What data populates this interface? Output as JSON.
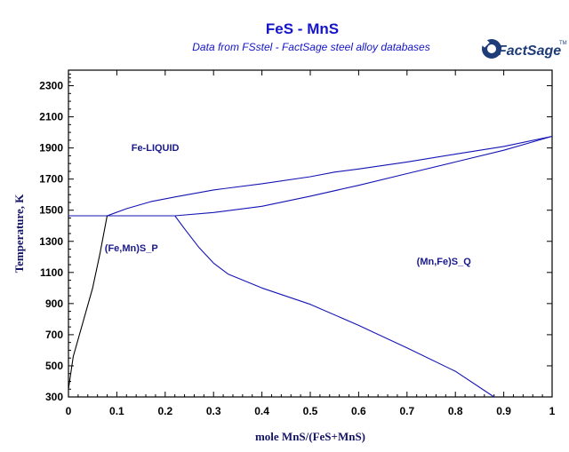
{
  "title": "FeS - MnS",
  "subtitle": "Data from FSstel - FactSage steel alloy databases",
  "logo": {
    "text": "FactSage",
    "mark": "TM"
  },
  "colors": {
    "title": "#1414c8",
    "axis_label": "#141464",
    "tick_label": "#000000",
    "curve": "#1414b4",
    "curve_black": "#000000",
    "region_label": "#1a1a8c",
    "logo": "#1e3c78"
  },
  "chart_data": {
    "type": "line",
    "title": "FeS - MnS",
    "subtitle": "Data from FSstel - FactSage steel alloy databases",
    "xlabel": "mole MnS/(FeS+MnS)",
    "ylabel": "Temperature, K",
    "xlim": [
      0,
      1
    ],
    "ylim": [
      300,
      2400
    ],
    "x_ticks": [
      0,
      0.1,
      0.2,
      0.3,
      0.4,
      0.5,
      0.6,
      0.7,
      0.8,
      0.9,
      1
    ],
    "x_tick_labels": [
      "0",
      "0.1",
      "0.2",
      "0.3",
      "0.4",
      "0.5",
      "0.6",
      "0.7",
      "0.8",
      "0.9",
      "1"
    ],
    "y_ticks": [
      300,
      500,
      700,
      900,
      1100,
      1300,
      1500,
      1700,
      1900,
      2100,
      2300
    ],
    "y_tick_labels": [
      "300",
      "500",
      "700",
      "900",
      "1100",
      "1300",
      "1500",
      "1700",
      "1900",
      "2100",
      "2300"
    ],
    "grid": false,
    "region_labels": [
      {
        "text": "Fe-LIQUID",
        "x": 0.13,
        "y": 1880
      },
      {
        "text": "(Fe,Mn)S_P",
        "x": 0.075,
        "y": 1235
      },
      {
        "text": "(Mn,Fe)S_Q",
        "x": 0.72,
        "y": 1150
      }
    ],
    "series": [
      {
        "color": "#1414b4",
        "points": [
          [
            0,
            1464
          ],
          [
            0.08,
            1464
          ],
          [
            0.22,
            1464
          ]
        ]
      },
      {
        "color": "#1414b4",
        "points": [
          [
            0.08,
            1464
          ],
          [
            0.12,
            1510
          ],
          [
            0.17,
            1555
          ],
          [
            0.22,
            1585
          ],
          [
            0.3,
            1630
          ],
          [
            0.4,
            1670
          ],
          [
            0.5,
            1715
          ],
          [
            0.55,
            1745
          ],
          [
            0.6,
            1765
          ],
          [
            0.7,
            1810
          ],
          [
            0.8,
            1860
          ],
          [
            0.9,
            1910
          ],
          [
            1,
            1975
          ]
        ]
      },
      {
        "color": "#1414b4",
        "points": [
          [
            0.22,
            1464
          ],
          [
            0.3,
            1485
          ],
          [
            0.4,
            1525
          ],
          [
            0.5,
            1590
          ],
          [
            0.6,
            1660
          ],
          [
            0.7,
            1735
          ],
          [
            0.8,
            1810
          ],
          [
            0.9,
            1885
          ],
          [
            0.95,
            1930
          ],
          [
            1,
            1975
          ]
        ]
      },
      {
        "color": "#1414b4",
        "points": [
          [
            0.22,
            1464
          ],
          [
            0.24,
            1380
          ],
          [
            0.27,
            1260
          ],
          [
            0.3,
            1160
          ],
          [
            0.33,
            1090
          ],
          [
            0.4,
            1000
          ],
          [
            0.5,
            895
          ],
          [
            0.6,
            760
          ],
          [
            0.7,
            615
          ],
          [
            0.8,
            465
          ],
          [
            0.88,
            300
          ]
        ]
      },
      {
        "color": "#000000",
        "points": [
          [
            0,
            350
          ],
          [
            0.01,
            560
          ],
          [
            0.03,
            780
          ],
          [
            0.05,
            1000
          ],
          [
            0.065,
            1220
          ],
          [
            0.08,
            1464
          ]
        ]
      }
    ]
  }
}
